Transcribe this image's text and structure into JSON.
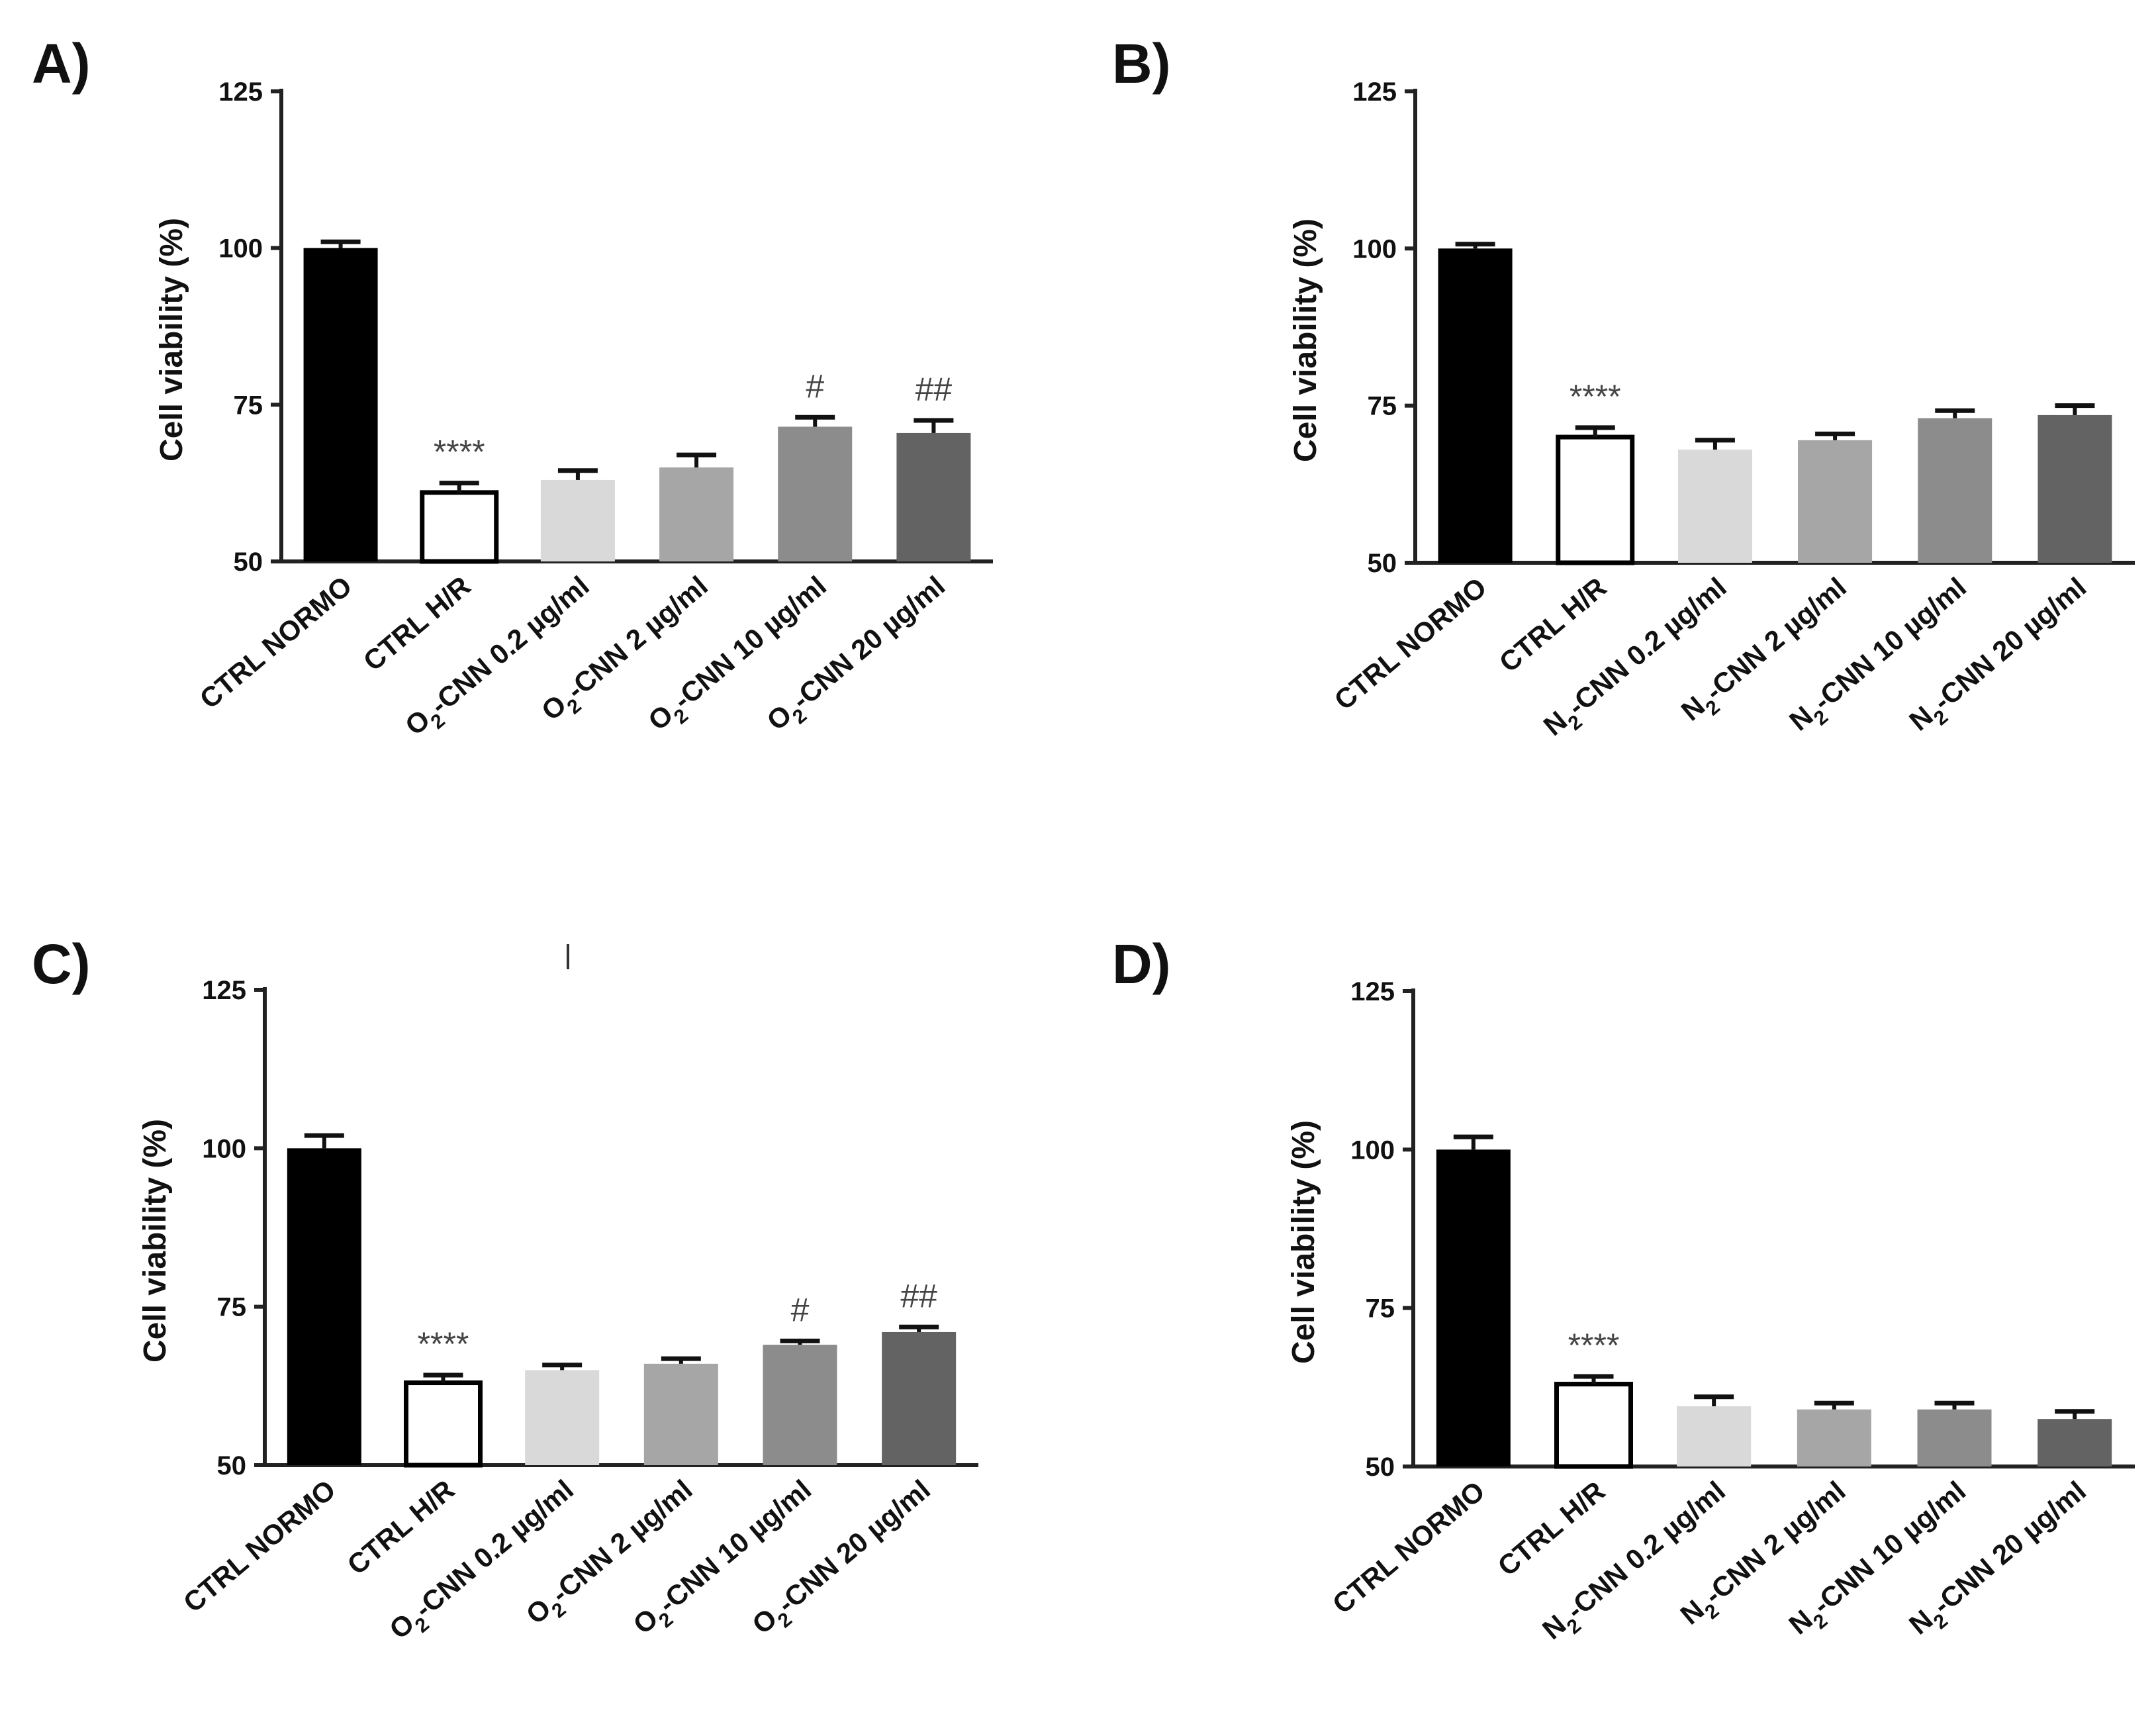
{
  "chart_data": [
    {
      "type": "bar",
      "panel": "A)",
      "ylabel": "Cell viability (%)",
      "ylim": [
        50,
        125
      ],
      "yticks": [
        "50",
        "75",
        "100",
        "125"
      ],
      "categories": [
        "CTRL NORMO",
        "CTRL H/R",
        "O2-CNN 0.2 µg/ml",
        "O2-CNN 2 µg/ml",
        "O2-CNN 10 µg/ml",
        "O2-CNN 20 µg/ml"
      ],
      "category_labels": [
        {
          "pre": "CTRL NORMO",
          "sub": "",
          "post": ""
        },
        {
          "pre": "CTRL H/R",
          "sub": "",
          "post": ""
        },
        {
          "pre": "O",
          "sub": "2",
          "post": "-CNN 0.2 µg/ml"
        },
        {
          "pre": "O",
          "sub": "2",
          "post": "-CNN 2 µg/ml"
        },
        {
          "pre": "O",
          "sub": "2",
          "post": "-CNN 10 µg/ml"
        },
        {
          "pre": "O",
          "sub": "2",
          "post": "-CNN 20 µg/ml"
        }
      ],
      "values": [
        100,
        61,
        63,
        65,
        71.5,
        70.5
      ],
      "errors": [
        1,
        1.5,
        1.5,
        2,
        1.5,
        2
      ],
      "significance": [
        "",
        "****",
        "",
        "",
        "#",
        "##"
      ],
      "colors": [
        "#000000",
        "#ffffff",
        "#d9d9d9",
        "#a6a6a6",
        "#8c8c8c",
        "#636363"
      ]
    },
    {
      "type": "bar",
      "panel": "B)",
      "ylabel": "Cell viability (%)",
      "ylim": [
        50,
        125
      ],
      "yticks": [
        "50",
        "75",
        "100",
        "125"
      ],
      "categories": [
        "CTRL NORMO",
        "CTRL H/R",
        "N2-CNN 0.2 µg/ml",
        "N2-CNN 2 µg/ml",
        "N2-CNN 10 µg/ml",
        "N2-CNN 20 µg/ml"
      ],
      "category_labels": [
        {
          "pre": "CTRL NORMO",
          "sub": "",
          "post": ""
        },
        {
          "pre": "CTRL H/R",
          "sub": "",
          "post": ""
        },
        {
          "pre": "N",
          "sub": "2",
          "post": "-CNN 0.2 µg/ml"
        },
        {
          "pre": "N",
          "sub": "2",
          "post": "-CNN 2 µg/ml"
        },
        {
          "pre": "N",
          "sub": "2",
          "post": "-CNN 10 µg/ml"
        },
        {
          "pre": "N",
          "sub": "2",
          "post": "-CNN 20 µg/ml"
        }
      ],
      "values": [
        100,
        70,
        68,
        69.5,
        73,
        73.5
      ],
      "errors": [
        0.7,
        1.5,
        1.5,
        1,
        1.2,
        1.5
      ],
      "significance": [
        "",
        "****",
        "",
        "",
        "",
        ""
      ],
      "colors": [
        "#000000",
        "#ffffff",
        "#d9d9d9",
        "#a6a6a6",
        "#8c8c8c",
        "#636363"
      ]
    },
    {
      "type": "bar",
      "panel": "C)",
      "ylabel": "Cell viability (%)",
      "ylim": [
        50,
        125
      ],
      "yticks": [
        "50",
        "75",
        "100",
        "125"
      ],
      "categories": [
        "CTRL NORMO",
        "CTRL H/R",
        "O2-CNN 0.2 µg/ml",
        "O2-CNN 2 µg/ml",
        "O2-CNN 10 µg/ml",
        "O2-CNN 20 µg/ml"
      ],
      "category_labels": [
        {
          "pre": "CTRL NORMO",
          "sub": "",
          "post": ""
        },
        {
          "pre": "CTRL H/R",
          "sub": "",
          "post": ""
        },
        {
          "pre": "O",
          "sub": "2",
          "post": "-CNN 0.2 µg/ml"
        },
        {
          "pre": "O",
          "sub": "2",
          "post": "-CNN 2 µg/ml"
        },
        {
          "pre": "O",
          "sub": "2",
          "post": "-CNN 10 µg/ml"
        },
        {
          "pre": "O",
          "sub": "2",
          "post": "-CNN 20 µg/ml"
        }
      ],
      "values": [
        100,
        63,
        65,
        66,
        69,
        71
      ],
      "errors": [
        2,
        1.2,
        0.8,
        0.8,
        0.6,
        0.8
      ],
      "significance": [
        "",
        "****",
        "",
        "",
        "#",
        "##"
      ],
      "colors": [
        "#000000",
        "#ffffff",
        "#d9d9d9",
        "#a6a6a6",
        "#8c8c8c",
        "#636363"
      ]
    },
    {
      "type": "bar",
      "panel": "D)",
      "ylabel": "Cell viability (%)",
      "ylim": [
        50,
        125
      ],
      "yticks": [
        "50",
        "75",
        "100",
        "125"
      ],
      "categories": [
        "CTRL NORMO",
        "CTRL H/R",
        "N2-CNN 0.2 µg/ml",
        "N2-CNN 2 µg/ml",
        "N2-CNN 10 µg/ml",
        "N2-CNN 20 µg/ml"
      ],
      "category_labels": [
        {
          "pre": "CTRL NORMO",
          "sub": "",
          "post": ""
        },
        {
          "pre": "CTRL H/R",
          "sub": "",
          "post": ""
        },
        {
          "pre": "N",
          "sub": "2",
          "post": "-CNN 0.2 µg/ml"
        },
        {
          "pre": "N",
          "sub": "2",
          "post": "-CNN 2 µg/ml"
        },
        {
          "pre": "N",
          "sub": "2",
          "post": "-CNN 10 µg/ml"
        },
        {
          "pre": "N",
          "sub": "2",
          "post": "-CNN 20 µg/ml"
        }
      ],
      "values": [
        100,
        63,
        59.5,
        59,
        59,
        57.5
      ],
      "errors": [
        2,
        1.2,
        1.5,
        1,
        1,
        1.2
      ],
      "significance": [
        "",
        "****",
        "",
        "",
        "",
        ""
      ],
      "colors": [
        "#000000",
        "#ffffff",
        "#d9d9d9",
        "#a6a6a6",
        "#8c8c8c",
        "#636363"
      ]
    }
  ]
}
